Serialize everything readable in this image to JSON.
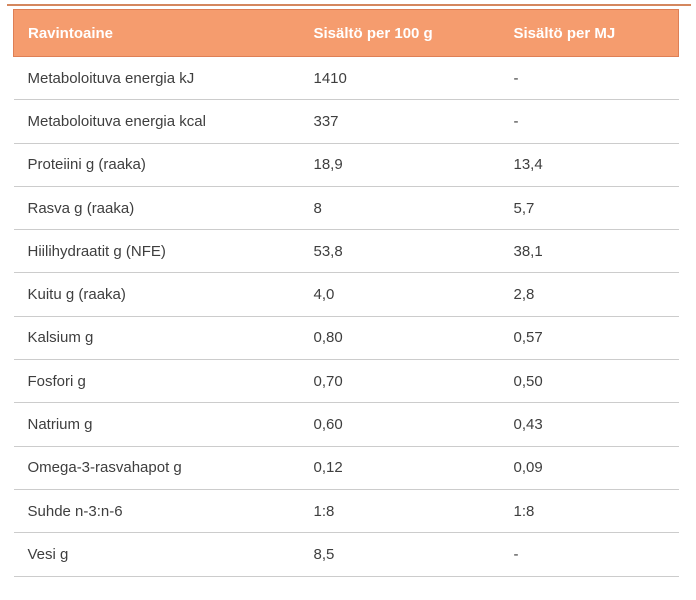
{
  "colors": {
    "header_bg": "#f59c6e",
    "header_border": "#de7f55",
    "top_strip": "#d4875e",
    "divider": "#cccccc",
    "row_text": "#3e3e3e",
    "header_text": "#ffffff"
  },
  "table": {
    "columns": [
      "Ravintoaine",
      "Sisältö per 100 g",
      "Sisältö per MJ"
    ],
    "rows": [
      {
        "nutrient": "Metaboloituva energia kJ",
        "per_100g": "1410",
        "per_mj": "-"
      },
      {
        "nutrient": "Metaboloituva energia kcal",
        "per_100g": "337",
        "per_mj": "-"
      },
      {
        "nutrient": "Proteiini g (raaka)",
        "per_100g": "18,9",
        "per_mj": "13,4"
      },
      {
        "nutrient": "Rasva g (raaka)",
        "per_100g": "8",
        "per_mj": "5,7"
      },
      {
        "nutrient": "Hiilihydraatit g (NFE)",
        "per_100g": "53,8",
        "per_mj": "38,1"
      },
      {
        "nutrient": "Kuitu g (raaka)",
        "per_100g": "4,0",
        "per_mj": "2,8"
      },
      {
        "nutrient": "Kalsium g",
        "per_100g": "0,80",
        "per_mj": "0,57"
      },
      {
        "nutrient": "Fosfori g",
        "per_100g": "0,70",
        "per_mj": "0,50"
      },
      {
        "nutrient": "Natrium g",
        "per_100g": "0,60",
        "per_mj": "0,43"
      },
      {
        "nutrient": "Omega-3-rasvahapot g",
        "per_100g": "0,12",
        "per_mj": "0,09"
      },
      {
        "nutrient": "Suhde n-3:n-6",
        "per_100g": "1:8",
        "per_mj": "1:8"
      },
      {
        "nutrient": "Vesi g",
        "per_100g": "8,5",
        "per_mj": "-"
      }
    ]
  }
}
